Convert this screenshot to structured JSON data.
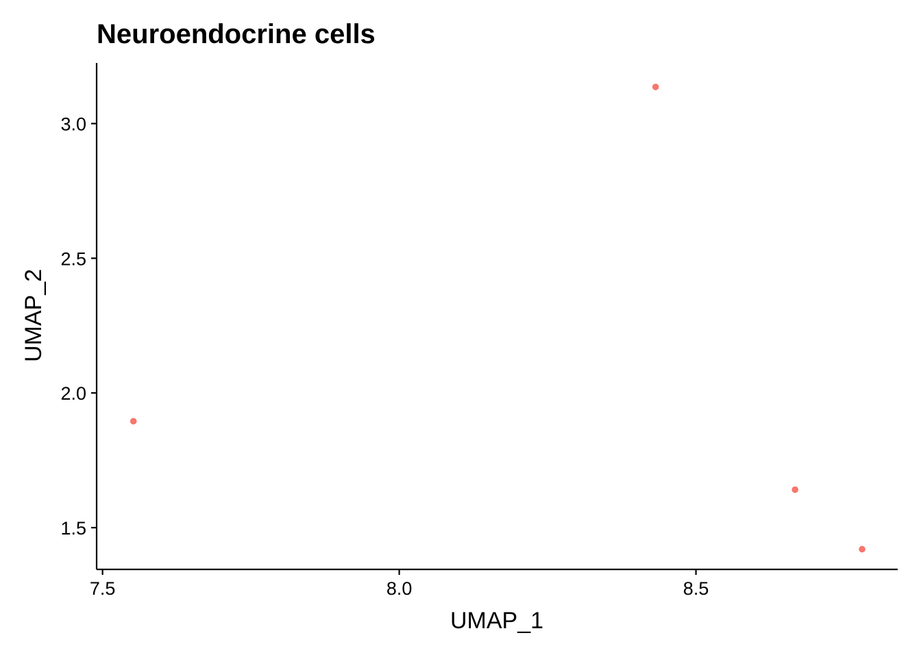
{
  "chart_data": {
    "type": "scatter",
    "title": "Neuroendocrine cells",
    "xlabel": "UMAP_1",
    "ylabel": "UMAP_2",
    "x_ticks": [
      "7.5",
      "8.0",
      "8.5"
    ],
    "y_ticks": [
      "1.5",
      "2.0",
      "2.5",
      "3.0"
    ],
    "xlim": [
      7.49,
      8.84
    ],
    "ylim": [
      1.345,
      3.225
    ],
    "grid": false,
    "legend": "none",
    "point_color": "#F8766D",
    "points": [
      {
        "x": 7.552,
        "y": 1.895
      },
      {
        "x": 8.432,
        "y": 3.136
      },
      {
        "x": 8.667,
        "y": 1.641
      },
      {
        "x": 8.78,
        "y": 1.42
      }
    ]
  }
}
